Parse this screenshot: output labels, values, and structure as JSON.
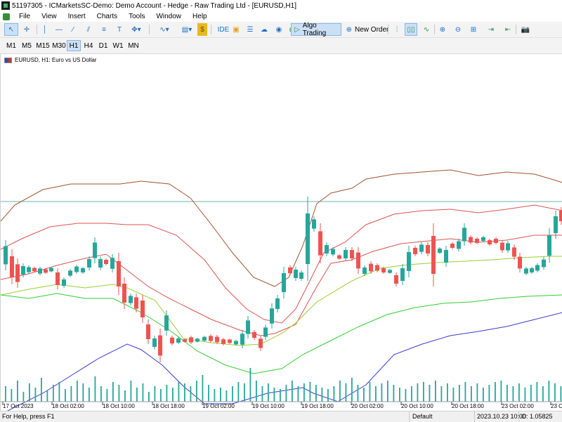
{
  "window": {
    "title": "51197305 - ICMarketsSC-Demo: Demo Account - Hedge - Raw Trading Ltd - [EURUSD,H1]"
  },
  "menu": [
    "File",
    "View",
    "Insert",
    "Charts",
    "Tools",
    "Window",
    "Help"
  ],
  "toolbar": {
    "ide_label": "IDE",
    "algo_label": "Algo Trading",
    "new_order_label": "New Order"
  },
  "timeframes": [
    "M1",
    "M5",
    "M15",
    "M30",
    "H1",
    "H4",
    "D1",
    "W1",
    "MN"
  ],
  "selected_timeframe": "H1",
  "chart": {
    "label": "EURUSD, H1:  Euro vs US Dollar",
    "xticks": [
      "17 Oct 2023",
      "18 Oct 02:00",
      "18 Oct 10:00",
      "18 Oct 18:00",
      "19 Oct 02:00",
      "19 Oct 10:00",
      "19 Oct 18:00",
      "20 Oct 02:00",
      "20 Oct 10:00",
      "20 Oct 18:00",
      "23 Oct 02:00",
      "23 O"
    ]
  },
  "status": {
    "help": "For Help, press F1",
    "profile": "Default",
    "time": "2023.10.23 10:00",
    "open": "O: 1.05825"
  },
  "colors": {
    "bull": "#26a69a",
    "bear": "#ef5350",
    "band_outer": "#a0522d",
    "band_mid": "#d9534f",
    "ma_fast": "#9acd32",
    "ma_slow": "#32cd32",
    "blue_line": "#3a3acc",
    "volume": "#26a69a",
    "hline": "#6fb3a8"
  }
}
